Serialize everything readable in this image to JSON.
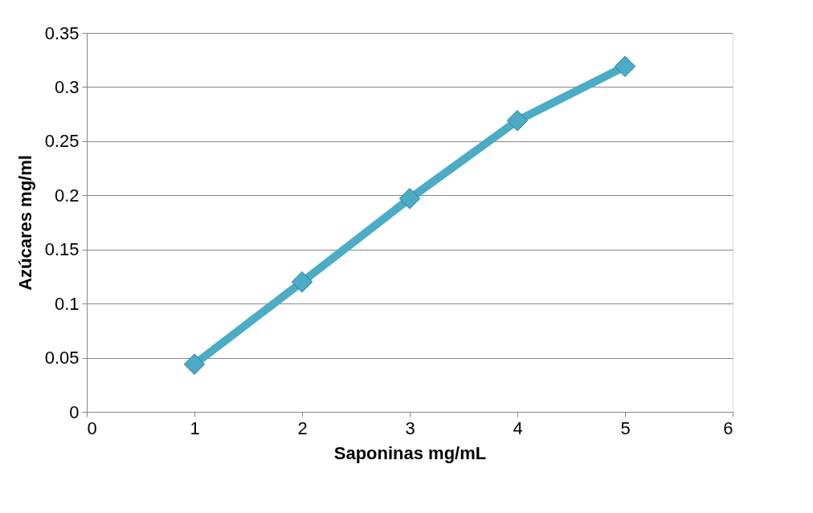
{
  "chart_data": {
    "type": "line",
    "xlabel": "Saponinas mg/mL",
    "ylabel": "Azúcares mg/ml",
    "x": [
      1,
      2,
      3,
      4,
      5
    ],
    "series": [
      {
        "color": "#4bacc6",
        "values": [
          0.044,
          0.12,
          0.197,
          0.269,
          0.319
        ]
      }
    ],
    "xlim": [
      0,
      6
    ],
    "xticks": [
      0,
      1,
      2,
      3,
      4,
      5,
      6
    ],
    "ylim": [
      0,
      0.35
    ],
    "yticks": [
      0,
      0.05,
      0.1,
      0.15,
      0.2,
      0.25,
      0.3,
      0.35
    ],
    "grid": "y",
    "marker": "diamond",
    "line_style": "solid"
  }
}
